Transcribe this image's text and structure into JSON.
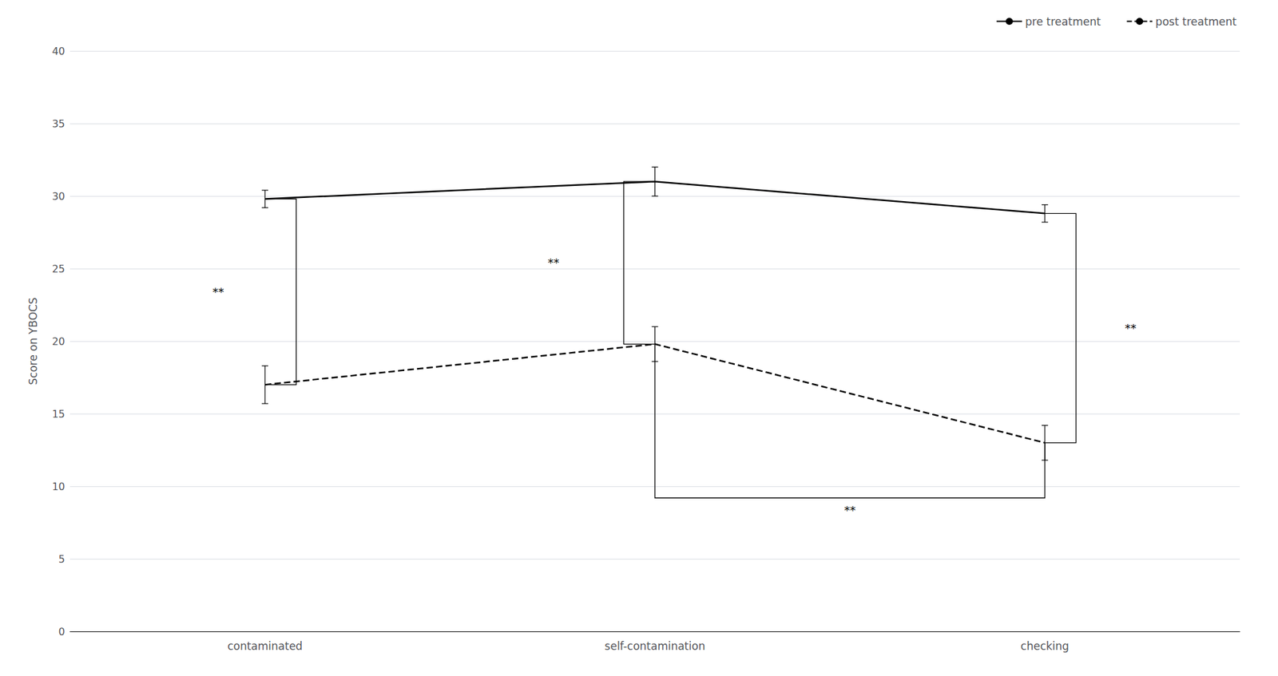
{
  "chart_data": {
    "type": "line",
    "categories": [
      "contaminated",
      "self-contamination",
      "checking"
    ],
    "series": [
      {
        "name": "pre treatment",
        "color": "#000000",
        "line_style": "solid",
        "values": [
          29.8,
          31.0,
          28.8
        ],
        "errors": [
          0.6,
          1.0,
          0.6
        ]
      },
      {
        "name": "post treatment",
        "color": "#000000",
        "line_style": "dashed",
        "values": [
          17.0,
          19.8,
          13.0
        ],
        "errors": [
          1.3,
          1.2,
          1.2
        ]
      }
    ],
    "ylabel": "Score on YBOCS",
    "ylim": [
      0,
      40
    ],
    "yticks": [
      0,
      5,
      10,
      15,
      20,
      25,
      30,
      35,
      40
    ],
    "grid": true,
    "legend": "upper right",
    "annotations": [
      {
        "text": "**",
        "category": "contaminated",
        "series": [
          "pre treatment",
          "post treatment"
        ]
      },
      {
        "text": "**",
        "category": "self-contamination",
        "series": [
          "pre treatment",
          "post treatment"
        ]
      },
      {
        "text": "**",
        "category": "checking",
        "series": [
          "pre treatment",
          "post treatment"
        ]
      },
      {
        "text": "**",
        "categories": [
          "self-contamination",
          "checking"
        ],
        "series": "post treatment",
        "y": 9.2
      }
    ]
  }
}
